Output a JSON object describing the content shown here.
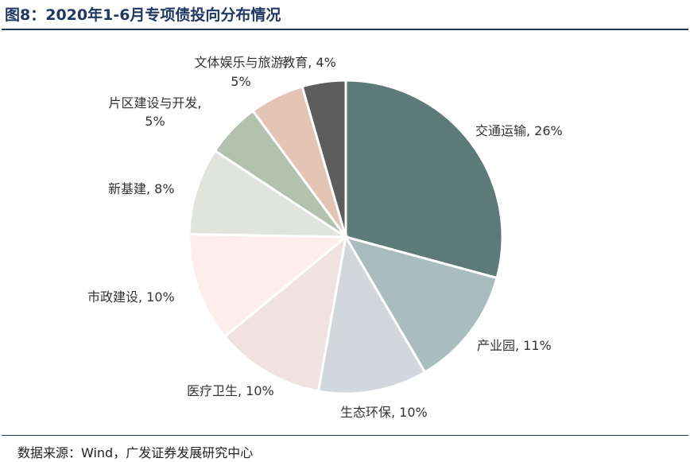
{
  "title": "图8：2020年1-6月专项债投向分布情况",
  "source": "数据来源：Wind，广发证券发展研究中心",
  "chart_data": {
    "type": "pie",
    "title": "图8：2020年1-6月专项债投向分布情况",
    "slices": [
      {
        "label": "交通运输, 26%",
        "value": 26,
        "color": "#5b7a78"
      },
      {
        "label": "产业园, 11%",
        "value": 11,
        "color": "#a9bcc0"
      },
      {
        "label": "生态环保, 10%",
        "value": 10,
        "color": "#d2d7dd"
      },
      {
        "label": "医疗卫生, 10%",
        "value": 10,
        "color": "#f1e2e2"
      },
      {
        "label": "市政建设, 10%",
        "value": 10,
        "color": "#fdeeed"
      },
      {
        "label": "新基建, 8%",
        "value": 8,
        "color": "#e0e4dd"
      },
      {
        "label": "片区建设与开发,",
        "label2": "5%",
        "value": 5,
        "color": "#b3c2ae"
      },
      {
        "label": "文体娱乐与旅游,",
        "label2": "5%",
        "value": 5,
        "color": "#e3c4b5"
      },
      {
        "label": "教育, 4%",
        "value": 4,
        "color": "#5d5d5d"
      }
    ]
  }
}
